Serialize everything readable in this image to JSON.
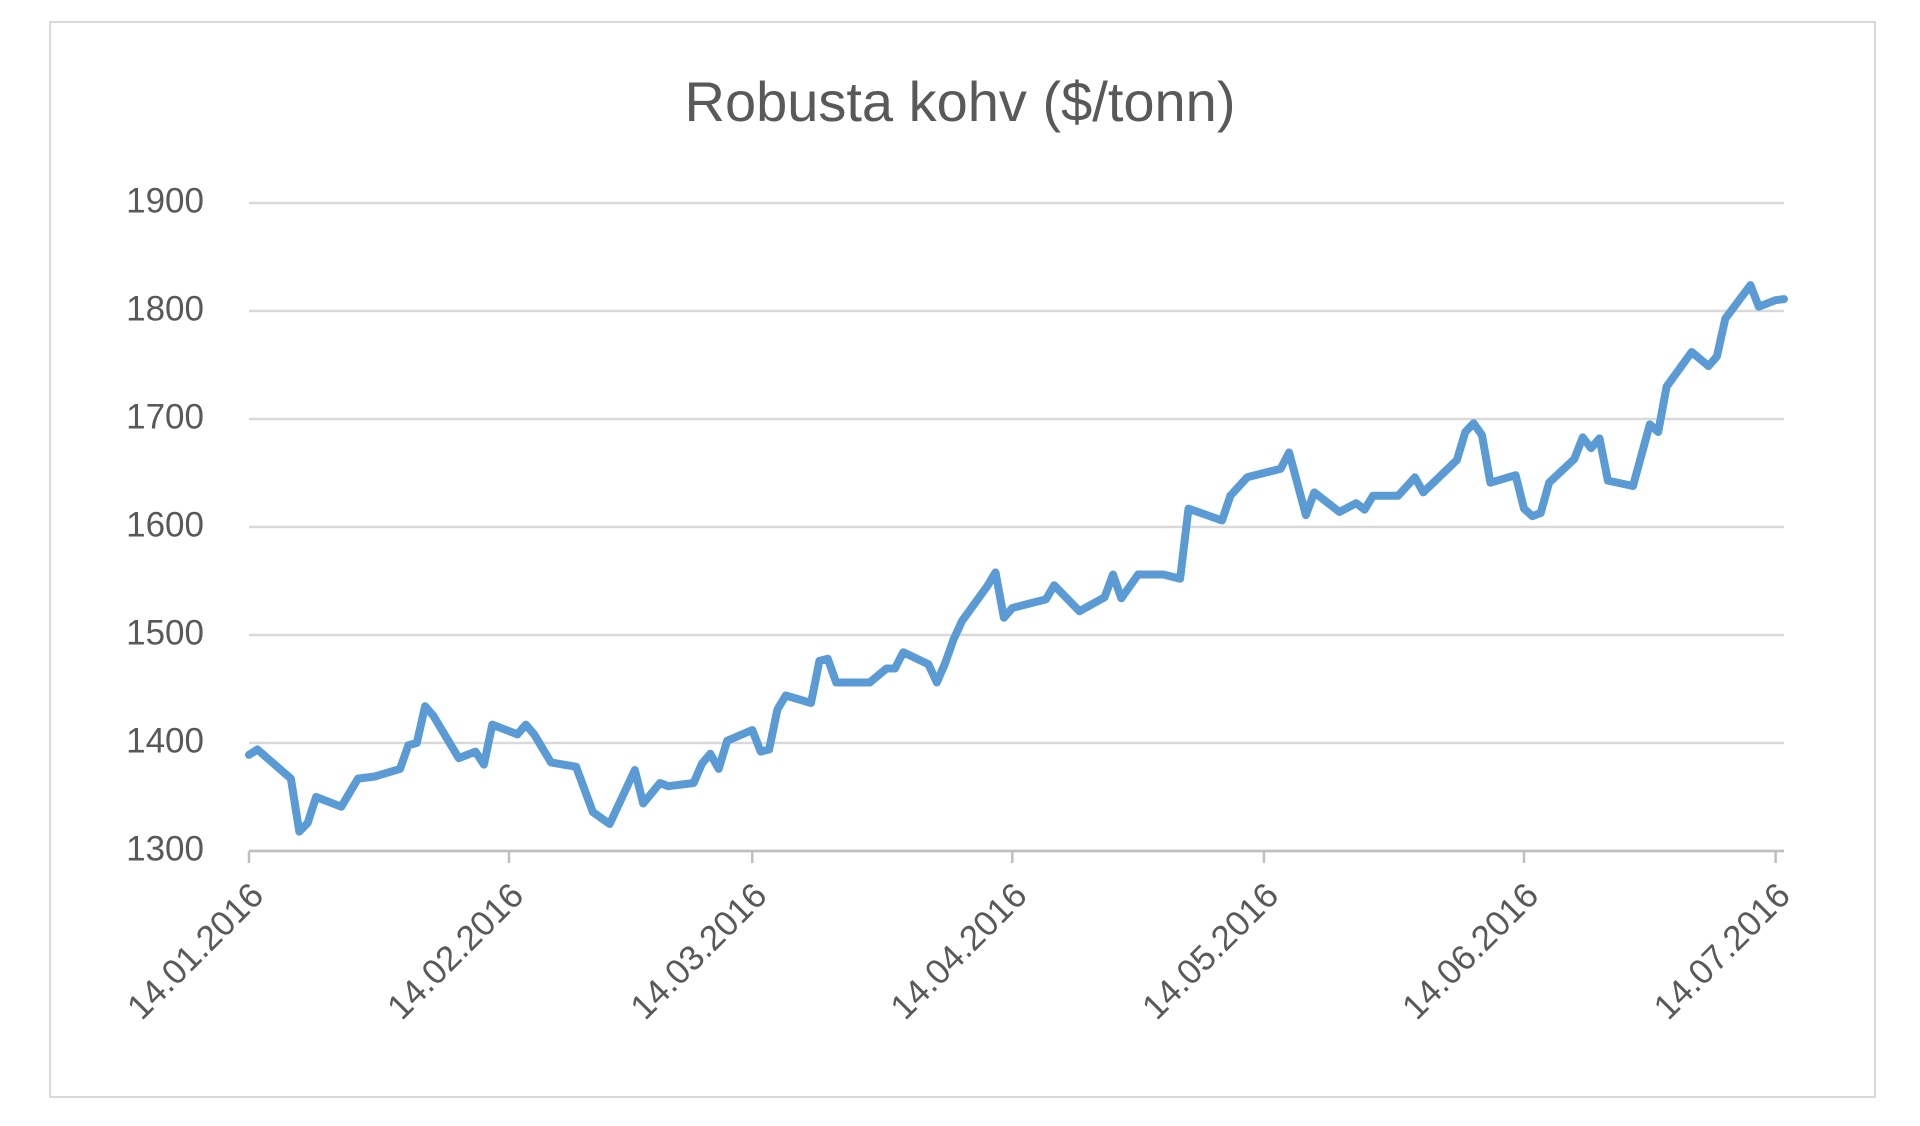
{
  "chart_data": {
    "type": "line",
    "title": "Robusta kohv ($/tonn)",
    "x": [
      "14.01.2016",
      "15.01.2016",
      "19.01.2016",
      "20.01.2016",
      "21.01.2016",
      "22.01.2016",
      "25.01.2016",
      "27.01.2016",
      "29.01.2016",
      "01.02.2016",
      "02.02.2016",
      "03.02.2016",
      "04.02.2016",
      "05.02.2016",
      "08.02.2016",
      "10.02.2016",
      "11.02.2016",
      "12.02.2016",
      "15.02.2016",
      "16.02.2016",
      "17.02.2016",
      "19.02.2016",
      "22.02.2016",
      "24.02.2016",
      "26.02.2016",
      "29.02.2016",
      "01.03.2016",
      "03.03.2016",
      "04.03.2016",
      "07.03.2016",
      "08.03.2016",
      "09.03.2016",
      "10.03.2016",
      "11.03.2016",
      "14.03.2016",
      "15.03.2016",
      "16.03.2016",
      "17.03.2016",
      "18.03.2016",
      "21.03.2016",
      "22.03.2016",
      "23.03.2016",
      "24.03.2016",
      "28.03.2016",
      "30.03.2016",
      "31.03.2016",
      "01.04.2016",
      "04.04.2016",
      "05.04.2016",
      "06.04.2016",
      "07.04.2016",
      "08.04.2016",
      "11.04.2016",
      "12.04.2016",
      "13.04.2016",
      "14.04.2016",
      "18.04.2016",
      "19.04.2016",
      "22.04.2016",
      "25.04.2016",
      "26.04.2016",
      "27.04.2016",
      "29.04.2016",
      "02.05.2016",
      "04.05.2016",
      "05.05.2016",
      "09.05.2016",
      "10.05.2016",
      "12.05.2016",
      "16.05.2016",
      "17.05.2016",
      "19.05.2016",
      "20.05.2016",
      "23.05.2016",
      "25.05.2016",
      "26.05.2016",
      "27.05.2016",
      "30.05.2016",
      "01.06.2016",
      "02.06.2016",
      "06.06.2016",
      "07.06.2016",
      "08.06.2016",
      "09.06.2016",
      "10.06.2016",
      "13.06.2016",
      "14.06.2016",
      "15.06.2016",
      "16.06.2016",
      "17.06.2016",
      "20.06.2016",
      "21.06.2016",
      "22.06.2016",
      "23.06.2016",
      "24.06.2016",
      "27.06.2016",
      "29.06.2016",
      "30.06.2016",
      "01.07.2016",
      "04.07.2016",
      "06.07.2016",
      "07.07.2016",
      "08.07.2016",
      "11.07.2016",
      "12.07.2016",
      "14.07.2016",
      "15.07.2016"
    ],
    "series": [
      {
        "color": "#5b9bd5",
        "values": [
          1389,
          1394,
          1367,
          1318,
          1326,
          1350,
          1341,
          1367,
          1369,
          1376,
          1398,
          1400,
          1434,
          1425,
          1386,
          1392,
          1380,
          1417,
          1408,
          1417,
          1408,
          1382,
          1378,
          1336,
          1325,
          1375,
          1344,
          1363,
          1360,
          1363,
          1381,
          1390,
          1376,
          1402,
          1412,
          1392,
          1394,
          1431,
          1444,
          1437,
          1476,
          1478,
          1456,
          1456,
          1469,
          1469,
          1484,
          1473,
          1456,
          1474,
          1496,
          1513,
          1545,
          1558,
          1516,
          1525,
          1533,
          1546,
          1522,
          1535,
          1556,
          1534,
          1556,
          1556,
          1552,
          1617,
          1606,
          1629,
          1646,
          1654,
          1669,
          1611,
          1632,
          1614,
          1622,
          1616,
          1629,
          1629,
          1646,
          1632,
          1662,
          1688,
          1696,
          1685,
          1641,
          1648,
          1617,
          1610,
          1613,
          1641,
          1663,
          1683,
          1673,
          1682,
          1643,
          1638,
          1695,
          1688,
          1730,
          1762,
          1749,
          1758,
          1793,
          1824,
          1804,
          1810,
          1811
        ]
      }
    ],
    "xlim": [
      "14.01.2016",
      "15.07.2016"
    ],
    "xticks": [
      "14.01.2016",
      "14.02.2016",
      "14.03.2016",
      "14.04.2016",
      "14.05.2016",
      "14.06.2016",
      "14.07.2016"
    ],
    "ylim": [
      1300,
      1900
    ],
    "yticks": [
      1300,
      1400,
      1500,
      1600,
      1700,
      1800,
      1900
    ],
    "grid": true
  }
}
